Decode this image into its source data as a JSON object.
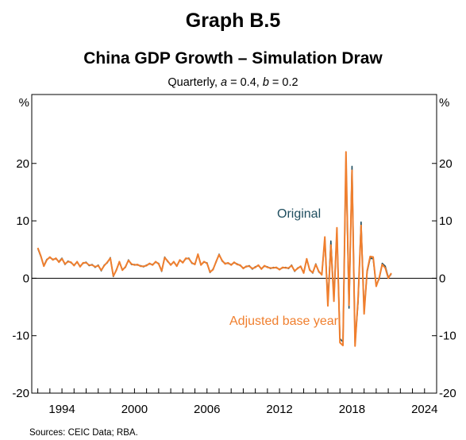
{
  "header": {
    "graph_number": "Graph B.5",
    "title": "China GDP Growth – Simulation Draw",
    "subtitle_prefix": "Quarterly, ",
    "param_a_name": "a",
    "param_a_value": " = 0.4,  ",
    "param_b_name": "b",
    "param_b_value": " = 0.2"
  },
  "source": "Sources: CEIC Data; RBA.",
  "colors": {
    "original": "#1f4e5f",
    "adjusted": "#f07f2e",
    "axis": "#000000"
  },
  "chart_data": {
    "type": "line",
    "title": "China GDP Growth – Simulation Draw",
    "subtitle": "Quarterly, a = 0.4, b = 0.2",
    "ylabel_left": "%",
    "ylabel_right": "%",
    "ylim": [
      -20,
      32
    ],
    "y_ticks": [
      -20,
      -10,
      0,
      10,
      20
    ],
    "x_ticks": [
      1994,
      2000,
      2006,
      2012,
      2018,
      2024
    ],
    "xlim": [
      1991.5,
      2025.0
    ],
    "grid": false,
    "annotations": [
      {
        "text": "Original",
        "series": "Original"
      },
      {
        "text": "Adjusted base year",
        "series": "Adjusted base year"
      }
    ],
    "x_start": 1992.0,
    "x_step": 0.25,
    "series": [
      {
        "name": "Original",
        "values": [
          5.2,
          3.8,
          2.2,
          3.3,
          3.6,
          3.3,
          3.4,
          2.9,
          3.5,
          2.4,
          3.0,
          2.7,
          2.3,
          2.8,
          2.1,
          2.6,
          2.8,
          2.2,
          2.4,
          1.9,
          2.3,
          1.3,
          2.3,
          2.7,
          3.6,
          0.3,
          1.5,
          2.8,
          1.5,
          1.9,
          3.2,
          2.4,
          2.4,
          2.3,
          2.2,
          2.0,
          2.3,
          2.5,
          2.4,
          2.8,
          2.6,
          1.2,
          3.7,
          2.9,
          2.4,
          2.8,
          2.2,
          3.1,
          2.8,
          3.4,
          3.5,
          2.6,
          2.5,
          4.1,
          2.4,
          2.8,
          2.7,
          1.0,
          1.6,
          2.8,
          4.2,
          3.0,
          2.6,
          2.6,
          2.4,
          2.7,
          2.5,
          2.2,
          1.8,
          2.0,
          2.2,
          1.6,
          2.0,
          2.2,
          1.7,
          2.1,
          2.0,
          1.7,
          1.9,
          1.8,
          1.6,
          1.8,
          1.9,
          1.7,
          2.3,
          1.2,
          1.8,
          2.0,
          1.0,
          3.3,
          1.5,
          0.9,
          2.5,
          1.1,
          0.7,
          6.8,
          -4.2,
          6.5,
          -3.6,
          8.3,
          -10.5,
          -11.1,
          20.8,
          -5.2,
          19.5,
          -11.3,
          -4.2,
          9.8,
          -5.8,
          1.1,
          3.5,
          3.4,
          -1.2,
          -0.1,
          2.6,
          2.1,
          0.2,
          0.7
        ],
        "color": "#1f4e5f"
      },
      {
        "name": "Adjusted base year",
        "values": [
          5.3,
          3.9,
          2.1,
          3.2,
          3.7,
          3.2,
          3.5,
          2.8,
          3.4,
          2.5,
          2.9,
          2.8,
          2.2,
          2.9,
          2.0,
          2.7,
          2.7,
          2.3,
          2.3,
          2.0,
          2.2,
          1.4,
          2.2,
          2.8,
          3.5,
          0.4,
          1.4,
          2.9,
          1.4,
          2.0,
          3.1,
          2.5,
          2.3,
          2.4,
          2.1,
          2.1,
          2.2,
          2.6,
          2.3,
          2.9,
          2.5,
          1.3,
          3.6,
          3.0,
          2.3,
          2.9,
          2.1,
          3.2,
          2.7,
          3.5,
          3.4,
          2.7,
          2.4,
          4.2,
          2.3,
          2.9,
          2.6,
          1.1,
          1.5,
          2.9,
          4.1,
          3.1,
          2.5,
          2.7,
          2.3,
          2.8,
          2.4,
          2.3,
          1.7,
          2.1,
          2.1,
          1.7,
          1.9,
          2.3,
          1.6,
          2.2,
          1.9,
          1.8,
          1.8,
          1.9,
          1.5,
          1.9,
          1.8,
          1.8,
          2.2,
          1.3,
          1.7,
          2.1,
          0.9,
          3.4,
          1.4,
          1.0,
          2.4,
          1.2,
          0.6,
          7.2,
          -4.8,
          5.8,
          -4.0,
          8.8,
          -11.2,
          -11.7,
          22.0,
          -4.7,
          18.8,
          -11.8,
          -3.6,
          9.2,
          -6.2,
          1.3,
          3.8,
          3.7,
          -1.4,
          0.1,
          2.4,
          1.8,
          0.0,
          0.9
        ],
        "color": "#f07f2e"
      }
    ]
  }
}
